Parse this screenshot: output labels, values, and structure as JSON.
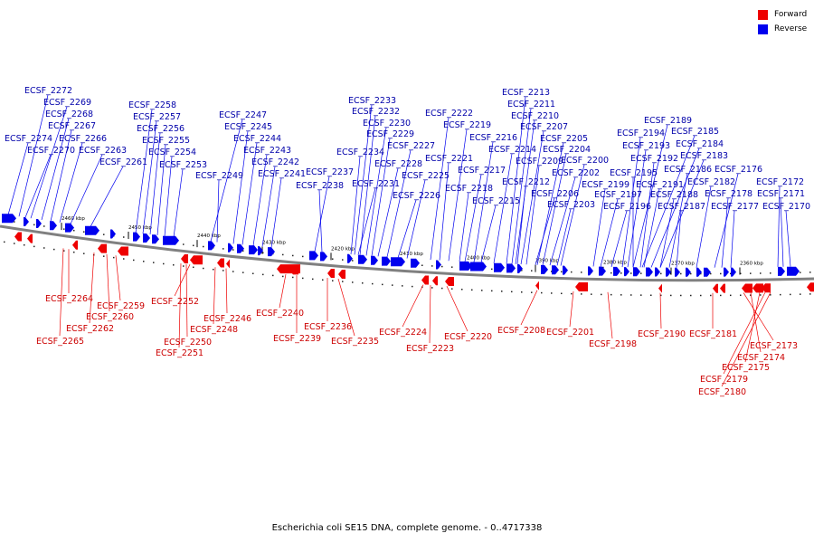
{
  "legend": {
    "forward_label": "Forward",
    "reverse_label": "Reverse",
    "forward_color": "#ee0000",
    "reverse_color": "#0000ee"
  },
  "caption": "Escherichia coli SE15 DNA, complete genome. - 0..4717338",
  "ticks": [
    "2460 kbp",
    "2450 kbp",
    "2440 kbp",
    "2430 kbp",
    "2420 kbp",
    "2410 kbp",
    "2400 kbp",
    "2390 kbp",
    "2380 kbp",
    "2370 kbp",
    "2360 kbp"
  ],
  "reverse_genes": [
    "ECSF_2272",
    "ECSF_2269",
    "ECSF_2268",
    "ECSF_2267",
    "ECSF_2274",
    "ECSF_2270",
    "ECSF_2266",
    "ECSF_2263",
    "ECSF_2261",
    "ECSF_2258",
    "ECSF_2257",
    "ECSF_2256",
    "ECSF_2255",
    "ECSF_2254",
    "ECSF_2253",
    "ECSF_2247",
    "ECSF_2245",
    "ECSF_2244",
    "ECSF_2243",
    "ECSF_2249",
    "ECSF_2242",
    "ECSF_2241",
    "ECSF_2237",
    "ECSF_2238",
    "ECSF_2233",
    "ECSF_2232",
    "ECSF_2230",
    "ECSF_2229",
    "ECSF_2234",
    "ECSF_2227",
    "ECSF_2228",
    "ECSF_2231",
    "ECSF_2226",
    "ECSF_2225",
    "ECSF_2222",
    "ECSF_2221",
    "ECSF_2219",
    "ECSF_2218",
    "ECSF_2217",
    "ECSF_2216",
    "ECSF_2215",
    "ECSF_2214",
    "ECSF_2213",
    "ECSF_2211",
    "ECSF_2210",
    "ECSF_2207",
    "ECSF_2212",
    "ECSF_2209",
    "ECSF_2205",
    "ECSF_2204",
    "ECSF_2206",
    "ECSF_2202",
    "ECSF_2203",
    "ECSF_2200",
    "ECSF_2199",
    "ECSF_2197",
    "ECSF_2196",
    "ECSF_2189",
    "ECSF_2194",
    "ECSF_2185",
    "ECSF_2193",
    "ECSF_2184",
    "ECSF_2195",
    "ECSF_2192",
    "ECSF_2183",
    "ECSF_2191",
    "ECSF_2186",
    "ECSF_2188",
    "ECSF_2187",
    "ECSF_2182",
    "ECSF_2176",
    "ECSF_2178",
    "ECSF_2177",
    "ECSF_2172",
    "ECSF_2171",
    "ECSF_2170"
  ],
  "forward_genes": [
    "ECSF_2264",
    "ECSF_2259",
    "ECSF_2260",
    "ECSF_2262",
    "ECSF_2265",
    "ECSF_2252",
    "ECSF_2246",
    "ECSF_2248",
    "ECSF_2250",
    "ECSF_2251",
    "ECSF_2240",
    "ECSF_2239",
    "ECSF_2236",
    "ECSF_2235",
    "ECSF_2224",
    "ECSF_2223",
    "ECSF_2220",
    "ECSF_2208",
    "ECSF_2201",
    "ECSF_2198",
    "ECSF_2190",
    "ECSF_2181",
    "ECSF_2173",
    "ECSF_2174",
    "ECSF_2175",
    "ECSF_2179",
    "ECSF_2180"
  ]
}
